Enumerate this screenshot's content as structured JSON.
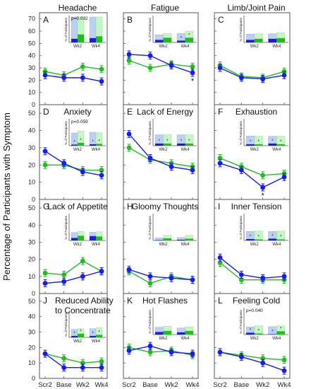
{
  "figure": {
    "ylabel": "Percentage of Participants with Symptom",
    "ytick_labels": [
      "0",
      "10",
      "20",
      "30",
      "40",
      "50",
      "60",
      "70"
    ],
    "x_categories": [
      "Scr2",
      "Base",
      "Wk2",
      "Wk4"
    ]
  },
  "colors": {
    "blue": "#1a1aee",
    "green": "#22bb22",
    "light_blue": "#bcd0f3",
    "light_green": "#c5f7c5",
    "axis": "#555555"
  },
  "chart_data": [
    {
      "letter": "A",
      "title": "Headache",
      "type": "line",
      "categories": [
        "Scr2",
        "Base",
        "Wk2",
        "Wk4"
      ],
      "series": [
        {
          "color": "blue",
          "values": [
            24,
            22,
            22,
            19
          ]
        },
        {
          "color": "green",
          "values": [
            27,
            24,
            31,
            29
          ]
        }
      ],
      "ylim": [
        0,
        75
      ],
      "annotation": "",
      "inset": {
        "ytitle": "% of Participants",
        "categories": [
          "Wk2",
          "Wk4"
        ],
        "pvalue": "p=0.032",
        "bars": [
          {
            "blue": 10,
            "light_blue": 70,
            "green": 22,
            "light_green": 70,
            "marker": ""
          },
          {
            "blue": 12,
            "light_blue": 70,
            "green": 17,
            "light_green": 70,
            "marker": ""
          }
        ]
      }
    },
    {
      "letter": "B",
      "title": "Fatigue",
      "type": "line",
      "categories": [
        "Scr2",
        "Base",
        "Wk2",
        "Wk4"
      ],
      "series": [
        {
          "color": "blue",
          "values": [
            41,
            40,
            32,
            26
          ]
        },
        {
          "color": "green",
          "values": [
            36,
            30,
            33,
            31
          ]
        }
      ],
      "ylim": [
        0,
        75
      ],
      "annotation": "*",
      "inset": {
        "ytitle": "% of Participants",
        "categories": [
          "Wk2",
          "Wk4"
        ],
        "pvalue": "",
        "bars": [
          {
            "blue": 7,
            "light_blue": 21,
            "green": 13,
            "light_green": 25,
            "marker": ""
          },
          {
            "blue": 5,
            "light_blue": 25,
            "green": 13,
            "light_green": 31,
            "marker": "*"
          }
        ]
      }
    },
    {
      "letter": "C",
      "title": "Limb/Joint Pain",
      "type": "line",
      "categories": [
        "Scr2",
        "Base",
        "Wk2",
        "Wk4"
      ],
      "series": [
        {
          "color": "blue",
          "values": [
            30,
            22,
            21,
            24
          ]
        },
        {
          "color": "green",
          "values": [
            32,
            23,
            22,
            27
          ]
        }
      ],
      "ylim": [
        0,
        75
      ],
      "annotation": "",
      "inset": {
        "ytitle": "% of Participants",
        "categories": [
          "Wk2",
          "Wk4"
        ],
        "pvalue": "",
        "bars": [
          {
            "blue": 7,
            "light_blue": 23,
            "green": 10,
            "light_green": 24,
            "marker": ""
          },
          {
            "blue": 10,
            "light_blue": 24,
            "green": 12,
            "light_green": 27,
            "marker": ""
          }
        ]
      }
    },
    {
      "letter": "D",
      "title": "Anxiety",
      "type": "line",
      "categories": [
        "Scr2",
        "Base",
        "Wk2",
        "Wk4"
      ],
      "series": [
        {
          "color": "blue",
          "values": [
            28,
            21,
            16,
            14
          ]
        },
        {
          "color": "green",
          "values": [
            20,
            20,
            17,
            17
          ]
        }
      ],
      "ylim": [
        0,
        55
      ],
      "annotation": "",
      "inset": {
        "ytitle": "% of Participants",
        "categories": [
          "Wk2",
          "Wk4"
        ],
        "pvalue": "p=0.059",
        "bars": [
          {
            "blue": 3,
            "light_blue": 35,
            "green": 8,
            "light_green": 40,
            "marker": "*"
          },
          {
            "blue": 4,
            "light_blue": 37,
            "green": 5,
            "light_green": 36,
            "marker": "*"
          }
        ]
      }
    },
    {
      "letter": "E",
      "title": "Lack of Energy",
      "type": "line",
      "categories": [
        "Scr2",
        "Base",
        "Wk2",
        "Wk4"
      ],
      "series": [
        {
          "color": "blue",
          "values": [
            38,
            24,
            19,
            17
          ]
        },
        {
          "color": "green",
          "values": [
            30,
            23,
            21,
            19
          ]
        }
      ],
      "ylim": [
        0,
        55
      ],
      "annotation": "",
      "inset": {
        "ytitle": "% of Participants",
        "categories": [
          "Wk2",
          "Wk4"
        ],
        "pvalue": "",
        "bars": [
          {
            "blue": 6,
            "light_blue": 30,
            "green": 6,
            "light_green": 31,
            "marker": "*"
          },
          {
            "blue": 6,
            "light_blue": 30,
            "green": 6,
            "light_green": 30,
            "marker": "*"
          }
        ]
      }
    },
    {
      "letter": "F",
      "title": "Exhaustion",
      "type": "line",
      "categories": [
        "Scr2",
        "Base",
        "Wk2",
        "Wk4"
      ],
      "series": [
        {
          "color": "blue",
          "values": [
            21,
            17,
            7,
            13
          ]
        },
        {
          "color": "green",
          "values": [
            24,
            19,
            14,
            15
          ]
        }
      ],
      "ylim": [
        0,
        55
      ],
      "annotation": "*",
      "inset": {
        "ytitle": "% of Participants",
        "categories": [
          "Wk2",
          "Wk4"
        ],
        "pvalue": "",
        "bars": [
          {
            "blue": 4,
            "light_blue": 27,
            "green": 4,
            "light_green": 26,
            "marker": "*"
          },
          {
            "blue": 6,
            "light_blue": 26,
            "green": 4,
            "light_green": 26,
            "marker": "*"
          }
        ]
      }
    },
    {
      "letter": "G",
      "title": "Lack of Appetite",
      "type": "line",
      "categories": [
        "Scr2",
        "Base",
        "Wk2",
        "Wk4"
      ],
      "series": [
        {
          "color": "blue",
          "values": [
            6,
            7,
            10,
            13
          ]
        },
        {
          "color": "green",
          "values": [
            12,
            11,
            19,
            13
          ]
        }
      ],
      "ylim": [
        0,
        55
      ],
      "annotation": "",
      "inset": {
        "ytitle": "% of Participants",
        "categories": [
          "Wk2",
          "Wk4"
        ],
        "pvalue": "",
        "bars": [
          {
            "blue": 7,
            "light_blue": 22,
            "green": 13,
            "light_green": 25,
            "marker": ""
          },
          {
            "blue": 12,
            "light_blue": 23,
            "green": 11,
            "light_green": 24,
            "marker": ""
          }
        ]
      }
    },
    {
      "letter": "H",
      "title": "Gloomy Thoughts",
      "type": "line",
      "categories": [
        "Scr2",
        "Base",
        "Wk2",
        "Wk4"
      ],
      "series": [
        {
          "color": "blue",
          "values": [
            14,
            10,
            9,
            8
          ]
        },
        {
          "color": "green",
          "values": [
            13,
            6,
            10,
            8
          ]
        }
      ],
      "ylim": [
        0,
        55
      ],
      "annotation": "",
      "inset": {
        "ytitle": "% of Participants",
        "categories": [
          "Wk2",
          "Wk4"
        ],
        "pvalue": "",
        "bars": [
          {
            "blue": 1,
            "light_blue": 7,
            "green": 6,
            "light_green": 14,
            "marker": ""
          },
          {
            "blue": 2,
            "light_blue": 8,
            "green": 5,
            "light_green": 14,
            "marker": ""
          }
        ]
      }
    },
    {
      "letter": "I",
      "title": "Inner Tension",
      "type": "line",
      "categories": [
        "Scr2",
        "Base",
        "Wk2",
        "Wk4"
      ],
      "series": [
        {
          "color": "blue",
          "values": [
            21,
            11,
            9,
            10
          ]
        },
        {
          "color": "green",
          "values": [
            18,
            8,
            8,
            8
          ]
        }
      ],
      "ylim": [
        0,
        55
      ],
      "annotation": "",
      "inset": {
        "ytitle": "% of Participants",
        "categories": [
          "Wk2",
          "Wk4"
        ],
        "pvalue": "",
        "bars": [
          {
            "blue": 4,
            "light_blue": 25,
            "green": 3,
            "light_green": 26,
            "marker": "*"
          },
          {
            "blue": 5,
            "light_blue": 25,
            "green": 3,
            "light_green": 26,
            "marker": "*"
          }
        ]
      }
    },
    {
      "letter": "J",
      "title": "Reduced Ability\nto Concentrate",
      "type": "line",
      "categories": [
        "Scr2",
        "Base",
        "Wk2",
        "Wk4"
      ],
      "series": [
        {
          "color": "blue",
          "values": [
            16,
            7,
            7,
            7
          ]
        },
        {
          "color": "green",
          "values": [
            16,
            13,
            10,
            11
          ]
        }
      ],
      "ylim": [
        0,
        55
      ],
      "annotation": "",
      "inset": {
        "ytitle": "% of Participants",
        "categories": [
          "Wk2",
          "Wk4"
        ],
        "pvalue": "",
        "bars": [
          {
            "blue": 4,
            "light_blue": 22,
            "green": 10,
            "light_green": 24,
            "marker": "*"
          },
          {
            "blue": 4,
            "light_blue": 24,
            "green": 7,
            "light_green": 27,
            "marker": "*"
          }
        ]
      }
    },
    {
      "letter": "K",
      "title": "Hot Flashes",
      "type": "line",
      "categories": [
        "Scr2",
        "Base",
        "Wk2",
        "Wk4"
      ],
      "series": [
        {
          "color": "blue",
          "values": [
            18,
            21,
            17,
            16
          ]
        },
        {
          "color": "green",
          "values": [
            20,
            17,
            18,
            15
          ]
        }
      ],
      "ylim": [
        0,
        55
      ],
      "annotation": "",
      "inset": {
        "ytitle": "% of Participants",
        "categories": [
          "Wk2",
          "Wk4"
        ],
        "pvalue": "",
        "bars": [
          {
            "blue": 7,
            "light_blue": 20,
            "green": 10,
            "light_green": 23,
            "marker": ""
          },
          {
            "blue": 6,
            "light_blue": 18,
            "green": 10,
            "light_green": 21,
            "marker": ""
          }
        ]
      }
    },
    {
      "letter": "L",
      "title": "Feeling Cold",
      "type": "line",
      "categories": [
        "Scr2",
        "Base",
        "Wk2",
        "Wk4"
      ],
      "series": [
        {
          "color": "blue",
          "values": [
            17,
            14,
            10,
            5
          ]
        },
        {
          "color": "green",
          "values": [
            17,
            15,
            13,
            12
          ]
        }
      ],
      "ylim": [
        0,
        55
      ],
      "annotation": "",
      "inset": {
        "ytitle": "% of Participants",
        "categories": [
          "Wk2",
          "Wk4"
        ],
        "pvalue": "p=0.040",
        "bars": [
          {
            "blue": 5,
            "light_blue": 21,
            "green": 3,
            "light_green": 24,
            "marker": "*"
          },
          {
            "blue": 1,
            "light_blue": 22,
            "green": 9,
            "light_green": 24,
            "marker": "*"
          }
        ]
      }
    }
  ]
}
